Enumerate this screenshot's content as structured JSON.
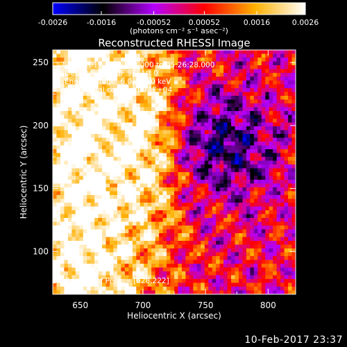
{
  "chart_data": {
    "type": "heatmap",
    "title": "Reconstructed RHESSI Image",
    "xlabel": "Heliocentric X (arcsec)",
    "ylabel": "Heliocentric Y (arcsec)",
    "xlim": [
      628,
      822
    ],
    "ylim": [
      66,
      260
    ],
    "xticks": [
      650,
      700,
      750,
      800
    ],
    "yticks": [
      100,
      150,
      200,
      250
    ],
    "colorbar": {
      "range": [
        -0.0026,
        0.0026
      ],
      "ticks": [
        -0.0026,
        -0.0016,
        -0.00052,
        0.00052,
        0.0016,
        0.0026
      ],
      "tick_labels": [
        "-0.0026",
        "-0.0016",
        "-0.00052",
        "0.00052",
        "0.0016",
        "0.0026"
      ],
      "unit_label": "(photons cm⁻² s⁻¹ asec⁻²)",
      "colors": [
        "#0000ff",
        "#000000",
        "#b400ff",
        "#ff0000",
        "#ffb000",
        "#ffffff"
      ]
    },
    "annotations": [
      "7-Sep-2017 05:16:28.000 to 05:26:28.000",
      "Detectors: 3F 6F 9F, Att 0",
      "Energy Range: 6.0 - 12.0 keV",
      "Clean    Total counts: 1.74E+04"
    ],
    "peak_label": "Position of Peak = [628,222]",
    "peak": {
      "x": 628,
      "y": 222
    }
  },
  "footer": {
    "timestamp": "10-Feb-2017 23:37"
  }
}
